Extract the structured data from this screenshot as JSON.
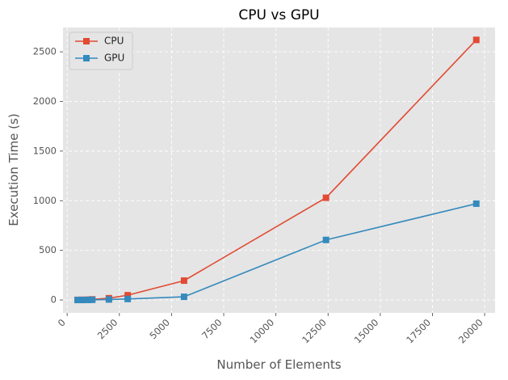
{
  "chart_data": {
    "type": "line",
    "title": "CPU vs GPU",
    "xlabel": "Number of Elements",
    "ylabel": "Execution Time (s)",
    "xlim": [
      -200,
      20500
    ],
    "ylim": [
      -130,
      2745
    ],
    "xticks": [
      0,
      2500,
      5000,
      7500,
      10000,
      12500,
      15000,
      17500,
      20000
    ],
    "xtick_labels": [
      "0",
      "2500",
      "5000",
      "7500",
      "10000",
      "12500",
      "15000",
      "17500",
      "20000"
    ],
    "yticks": [
      0,
      500,
      1000,
      1500,
      2000,
      2500
    ],
    "ytick_labels": [
      "0",
      "500",
      "1000",
      "1500",
      "2000",
      "2500"
    ],
    "grid": true,
    "legend_position": "top-left",
    "marker": "square",
    "series": [
      {
        "name": "CPU",
        "color": "#e24a33",
        "x": [
          500,
          700,
          1000,
          1200,
          2000,
          2900,
          5600,
          12400,
          19600
        ],
        "y": [
          1,
          2,
          3,
          6,
          18,
          48,
          195,
          1030,
          2620
        ]
      },
      {
        "name": "GPU",
        "color": "#348abd",
        "x": [
          500,
          700,
          1000,
          1200,
          2000,
          2900,
          5600,
          12400,
          19600
        ],
        "y": [
          0,
          0,
          1,
          2,
          5,
          10,
          32,
          605,
          970
        ]
      }
    ]
  }
}
